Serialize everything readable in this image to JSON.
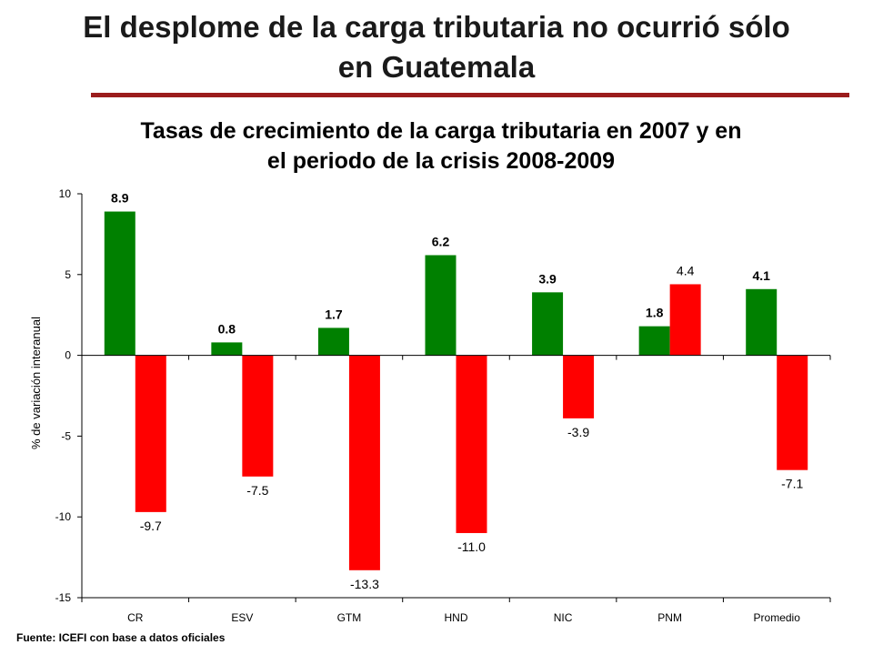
{
  "slide": {
    "title_line1": "El desplome de la carga tributaria no ocurrió sólo",
    "title_line2": "en Guatemala",
    "source": "Fuente: ICEFI con base a datos oficiales",
    "rule_color": "#9b1c1c"
  },
  "chart_data": {
    "type": "bar",
    "title_line1": "Tasas de crecimiento de la carga tributaria en 2007  y en",
    "title_line2": "el periodo de la crisis 2008-2009",
    "ylabel": "% de variación interanual",
    "xlabel": "",
    "ylim": [
      -15,
      10
    ],
    "yticks": [
      10,
      5,
      0,
      -5,
      -10,
      -15
    ],
    "categories": [
      "CR",
      "ESV",
      "GTM",
      "HND",
      "NIC",
      "PNM",
      "Promedio"
    ],
    "series": [
      {
        "color": "#008000",
        "values": [
          8.9,
          0.8,
          1.7,
          6.2,
          3.9,
          1.8,
          4.1
        ],
        "labels": [
          "8.9",
          "0.8",
          "1.7",
          "6.2",
          "3.9",
          "1.8",
          "4.1"
        ]
      },
      {
        "color": "#ff0000",
        "values": [
          -9.7,
          -7.5,
          -13.3,
          -11.0,
          -3.9,
          4.4,
          -7.1
        ],
        "labels": [
          "-9.7",
          "-7.5",
          "-13.3",
          "-11.0",
          "-3.9",
          "4.4",
          "-7.1"
        ]
      }
    ],
    "legend": "none",
    "grid": false
  }
}
